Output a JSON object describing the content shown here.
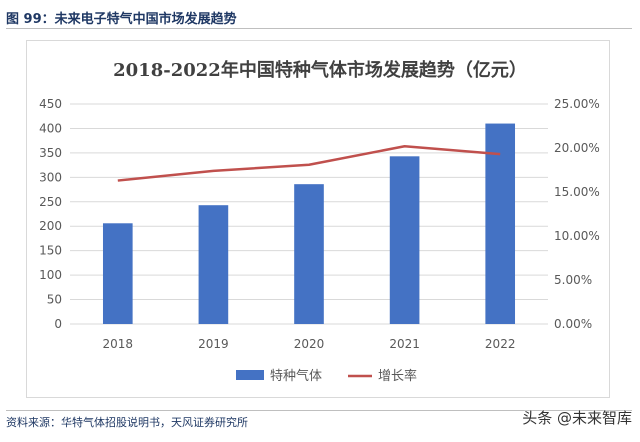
{
  "caption": "图 99：未来电子特气中国市场发展趋势",
  "source": "资料来源：华特气体招股说明书，天风证券研究所",
  "watermark": "头条 @未来智库",
  "colors": {
    "bar": "#4472c4",
    "line": "#c0504d",
    "grid": "#d9d9d9",
    "axis_text": "#595959",
    "title": "#404040",
    "caption": "#1f3864"
  },
  "chart_data": {
    "type": "bar",
    "title": "2018-2022年中国特种气体市场发展趋势（亿元）",
    "categories": [
      "2018",
      "2019",
      "2020",
      "2021",
      "2022"
    ],
    "series": [
      {
        "name": "特种气体",
        "type": "bar",
        "axis": "left",
        "values": [
          206,
          243,
          286,
          343,
          410
        ]
      },
      {
        "name": "增长率",
        "type": "line",
        "axis": "right",
        "values": [
          16.3,
          17.4,
          18.1,
          20.2,
          19.3
        ]
      }
    ],
    "y_left": {
      "min": 0,
      "max": 450,
      "step": 50,
      "ticks": [
        "0",
        "50",
        "100",
        "150",
        "200",
        "250",
        "300",
        "350",
        "400",
        "450"
      ]
    },
    "y_right": {
      "min": 0,
      "max": 25,
      "step": 5,
      "ticks": [
        "0.00%",
        "5.00%",
        "10.00%",
        "15.00%",
        "20.00%",
        "25.00%"
      ]
    },
    "grid": true,
    "legend_position": "bottom"
  }
}
